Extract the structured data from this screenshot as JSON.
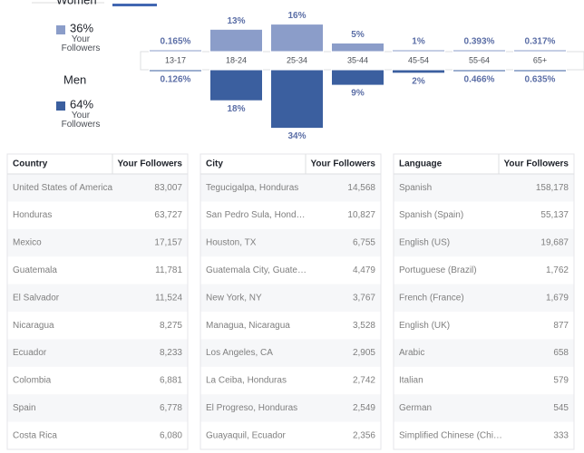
{
  "chart_data": {
    "type": "bar",
    "categories": [
      "13-17",
      "18-24",
      "25-34",
      "35-44",
      "45-54",
      "55-64",
      "65+"
    ],
    "series": [
      {
        "name": "Women",
        "color": "#8b9dc9",
        "share": 36,
        "share_label": "36%",
        "values": [
          0.165,
          13,
          16,
          5,
          1,
          0.393,
          0.317
        ],
        "value_labels": [
          "0.165%",
          "13%",
          "16%",
          "5%",
          "1%",
          "0.393%",
          "0.317%"
        ]
      },
      {
        "name": "Men",
        "color": "#3b5f9f",
        "share": 64,
        "share_label": "64%",
        "values": [
          0.126,
          18,
          34,
          9,
          2,
          0.466,
          0.635
        ],
        "value_labels": [
          "0.126%",
          "18%",
          "34%",
          "9%",
          "2%",
          "0.466%",
          "0.635%"
        ]
      }
    ],
    "legend_caption": "Your Followers"
  },
  "tables": [
    {
      "headers": [
        "Country",
        "Your Followers"
      ],
      "rows": [
        [
          "United States of America",
          "83,007"
        ],
        [
          "Honduras",
          "63,727"
        ],
        [
          "Mexico",
          "17,157"
        ],
        [
          "Guatemala",
          "11,781"
        ],
        [
          "El Salvador",
          "11,524"
        ],
        [
          "Nicaragua",
          "8,275"
        ],
        [
          "Ecuador",
          "8,233"
        ],
        [
          "Colombia",
          "6,881"
        ],
        [
          "Spain",
          "6,778"
        ],
        [
          "Costa Rica",
          "6,080"
        ]
      ]
    },
    {
      "headers": [
        "City",
        "Your Followers"
      ],
      "rows": [
        [
          "Tegucigalpa, Honduras",
          "14,568"
        ],
        [
          "San Pedro Sula, Hond…",
          "10,827"
        ],
        [
          "Houston, TX",
          "6,755"
        ],
        [
          "Guatemala City, Guate…",
          "4,479"
        ],
        [
          "New York, NY",
          "3,767"
        ],
        [
          "Managua, Nicaragua",
          "3,528"
        ],
        [
          "Los Angeles, CA",
          "2,905"
        ],
        [
          "La Ceiba, Honduras",
          "2,742"
        ],
        [
          "El Progreso, Honduras",
          "2,549"
        ],
        [
          "Guayaquil, Ecuador",
          "2,356"
        ]
      ]
    },
    {
      "headers": [
        "Language",
        "Your Followers"
      ],
      "rows": [
        [
          "Spanish",
          "158,178"
        ],
        [
          "Spanish (Spain)",
          "55,137"
        ],
        [
          "English (US)",
          "19,687"
        ],
        [
          "Portuguese (Brazil)",
          "1,762"
        ],
        [
          "French (France)",
          "1,679"
        ],
        [
          "English (UK)",
          "877"
        ],
        [
          "Arabic",
          "658"
        ],
        [
          "Italian",
          "579"
        ],
        [
          "German",
          "545"
        ],
        [
          "Simplified Chinese (Chi…",
          "333"
        ]
      ]
    }
  ]
}
